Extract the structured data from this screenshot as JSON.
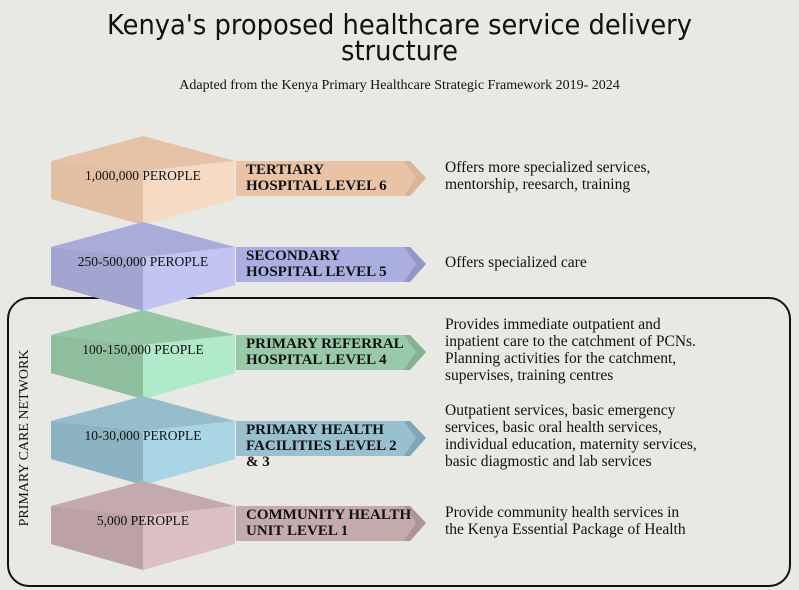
{
  "title_line1": "Kenya's proposed healthcare service delivery",
  "title_line2": "structure",
  "subtitle": "Adapted from the Kenya Primary Healthcare Strategic Framework 2019- 2024",
  "network_label": "PRIMARY CARE NETWORK",
  "levels": [
    {
      "population": "1,000,000 PEROPLE",
      "name": "TERTIARY\nHOSPITAL LEVEL 6",
      "description": "Offers more specialized services,\nmentorship, reesarch, training",
      "colors": {
        "top": "#e6c2a6",
        "left": "#e2bea2",
        "right": "#f7dac4",
        "arrow": "#e8c3a6",
        "tip": "#dcb596"
      }
    },
    {
      "population": "250-500,000 PEROPLE",
      "name": "SECONDARY\nHOSPITAL LEVEL 5",
      "description": "Offers specialized care",
      "colors": {
        "top": "#a9acd8",
        "left": "#a2a5cf",
        "right": "#c2c4f2",
        "arrow": "#abaee0",
        "tip": "#9598c4"
      }
    },
    {
      "population": "100-150,000 PEOPLE",
      "name": "PRIMARY REFERRAL\nHOSPITAL LEVEL 4",
      "description": "Provides immediate outpatient and\ninpatient care to the catchment of PCNs.\nPlanning activities for the catchment,\nsupervises, training centres",
      "colors": {
        "top": "#95c6a6",
        "left": "#8fbe9f",
        "right": "#b0eacb",
        "arrow": "#98c9a9",
        "tip": "#84b294"
      }
    },
    {
      "population": "10-30,000 PEROPLE",
      "name": "PRIMARY HEALTH\nFACILITIES LEVEL 2\n& 3",
      "description": "Outpatient services, basic emergency\nservices, basic oral health services,\nindividual education, maternity services,\nbasic diagmostic and lab services",
      "colors": {
        "top": "#95bdcc",
        "left": "#8cb3c2",
        "right": "#aad5e5",
        "arrow": "#98c0cf",
        "tip": "#80a7b6"
      }
    },
    {
      "population": "5,000 PEROPLE",
      "name": "COMMUNITY HEALTH\nUNIT LEVEL 1",
      "description": "Provide community health services in\nthe Kenya Essential Package of Health",
      "colors": {
        "top": "#c4aaac",
        "left": "#bca2a4",
        "right": "#dcc0c3",
        "arrow": "#c6abad",
        "tip": "#ae9497"
      }
    }
  ]
}
